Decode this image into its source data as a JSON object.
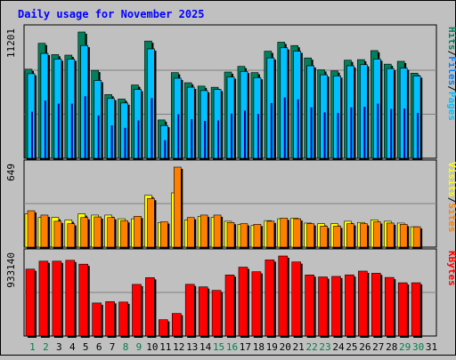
{
  "chart_data": {
    "type": "bar",
    "title": "Daily usage for November 2025",
    "days": [
      "1",
      "2",
      "3",
      "4",
      "5",
      "6",
      "7",
      "8",
      "9",
      "10",
      "11",
      "12",
      "13",
      "14",
      "15",
      "16",
      "17",
      "18",
      "19",
      "20",
      "21",
      "22",
      "23",
      "24",
      "25",
      "26",
      "27",
      "28",
      "29",
      "30",
      "31"
    ],
    "weekend_days": [
      "1",
      "2",
      "8",
      "9",
      "15",
      "16",
      "22",
      "23",
      "29",
      "30"
    ],
    "colors": {
      "background": "#c0c0c0",
      "plot_bg": "#c0c0c0",
      "grid": "#808080",
      "title": "#0000ff",
      "day_weekday": "#000000",
      "day_weekend": "#00804a",
      "hits": "#00805c",
      "files": "#0080ff",
      "pages": "#00c0ff",
      "sites": "#ff8000",
      "visits": "#ffff00",
      "kbytes": "#ff0000"
    },
    "panels": [
      {
        "id": "hits-files-pages",
        "ymax_label": "11201",
        "ymax": 11201,
        "legend": [
          "Pages",
          "Files",
          "Hits"
        ],
        "series": [
          {
            "name": "Hits",
            "values": [
              7900,
              10200,
              9200,
              9150,
              11201,
              7800,
              5650,
              5250,
              6500,
              10400,
              3400,
              7600,
              6700,
              6400,
              6300,
              7650,
              8150,
              7600,
              9500,
              10300,
              10000,
              8900,
              7850,
              7750,
              8700,
              8750,
              9550,
              8350,
              8600,
              7550
            ]
          },
          {
            "name": "Files",
            "values": [
              7500,
              9300,
              8800,
              8800,
              10000,
              6900,
              5300,
              4900,
              6100,
              9700,
              2900,
              7100,
              6300,
              6000,
              6100,
              7200,
              7700,
              7150,
              8900,
              9800,
              9500,
              8200,
              7400,
              7300,
              8200,
              8300,
              8800,
              7950,
              8000,
              7300
            ]
          },
          {
            "name": "Pages",
            "values": [
              7500,
              9300,
              8800,
              8800,
              10000,
              6900,
              5300,
              4900,
              6100,
              9700,
              2900,
              7100,
              6300,
              6000,
              6100,
              7200,
              7700,
              7150,
              8900,
              9800,
              9500,
              8200,
              7400,
              7300,
              8200,
              8300,
              8800,
              7950,
              8000,
              7300
            ]
          }
        ]
      },
      {
        "id": "sites-visits",
        "ymax_label": "649",
        "ymax": 649,
        "legend": [
          "Sites",
          "Visits"
        ],
        "series": [
          {
            "name": "Visits",
            "values": [
              270,
              240,
              240,
              220,
              270,
              260,
              260,
              230,
              230,
              420,
              200,
              440,
              220,
              250,
              240,
              210,
              185,
              175,
              215,
              230,
              235,
              195,
              190,
              190,
              210,
              200,
              220,
              210,
              195,
              165
            ]
          },
          {
            "name": "Sites",
            "values": [
              295,
              260,
              210,
              190,
              240,
              245,
              240,
              215,
              250,
              395,
              205,
              649,
              240,
              260,
              260,
              200,
              190,
              185,
              210,
              235,
              230,
              190,
              170,
              170,
              190,
              190,
              205,
              195,
              185,
              165
            ]
          }
        ]
      },
      {
        "id": "kbytes",
        "ymax_label": "933140",
        "ymax": 933140,
        "legend": [
          "KBytes"
        ],
        "series": [
          {
            "name": "KBytes",
            "values": [
              780000,
              873000,
              873000,
              883000,
              838000,
              385000,
              401000,
              396000,
              602000,
              681000,
              190000,
              263000,
              603000,
              573000,
              532000,
              712000,
              803000,
              750000,
              888000,
              933140,
              864000,
              712000,
              689000,
              695000,
              713000,
              757000,
              732000,
              683000,
              621000,
              621000
            ]
          }
        ]
      }
    ]
  }
}
